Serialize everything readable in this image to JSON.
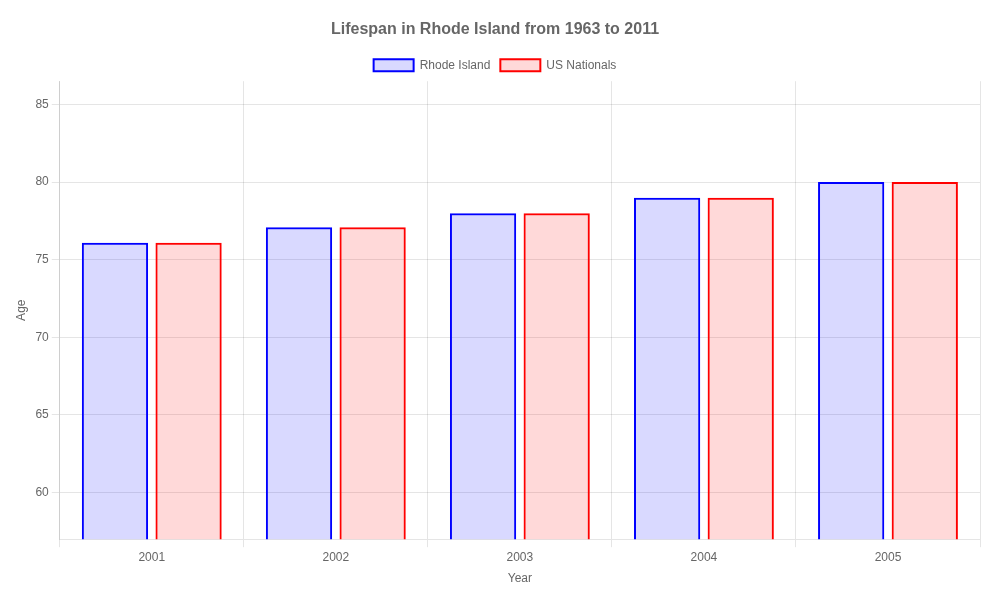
{
  "chart_data": {
    "type": "bar",
    "title": "Lifespan in Rhode Island from 1963 to 2011",
    "x_label": "Year",
    "y_label": "Age",
    "categories": [
      "2001",
      "2002",
      "2003",
      "2004",
      "2005"
    ],
    "series": [
      {
        "name": "Rhode Island",
        "color": "#0000ff",
        "values": [
          76.1,
          77.1,
          78.0,
          79.0,
          80.0
        ]
      },
      {
        "name": "US Nationals",
        "color": "#ff0000",
        "values": [
          76.1,
          77.1,
          78.0,
          79.0,
          80.0
        ]
      }
    ],
    "ylim": [
      57,
      86.5
    ],
    "yticks": [
      60,
      65,
      70,
      75,
      80,
      85
    ],
    "grid": true,
    "legend": "top"
  }
}
